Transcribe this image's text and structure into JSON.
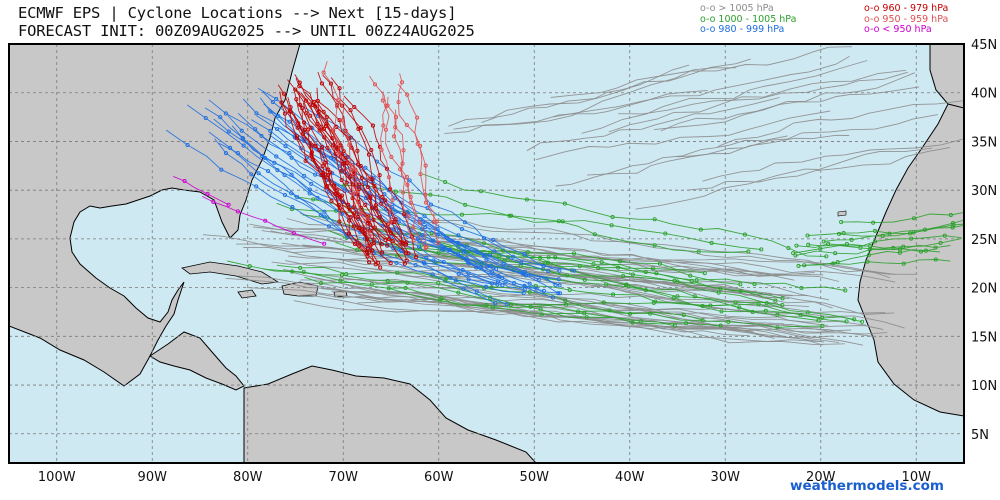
{
  "title": {
    "line1": "ECMWF EPS | Cyclone Locations --> Next [15-days]",
    "line2": "FORECAST INIT: 00Z09AUG2025 --> UNTIL 00Z24AUG2025"
  },
  "legend": [
    {
      "label": "o-o > 1005 hPa",
      "color": "#8c8c8c"
    },
    {
      "label": "o-o 1000 - 1005 hPa",
      "color": "#2ca02c"
    },
    {
      "label": "o-o 980 - 999 hPa",
      "color": "#1f6fe0"
    },
    {
      "label": "o-o 960 - 979 hPa",
      "color": "#c00000"
    },
    {
      "label": "o-o 950 - 959 hPa",
      "color": "#e05050"
    },
    {
      "label": "o-o < 950 hPa",
      "color": "#cc00cc"
    }
  ],
  "axes": {
    "lon_labels": [
      "100W",
      "90W",
      "80W",
      "70W",
      "60W",
      "50W",
      "40W",
      "30W",
      "20W",
      "10W"
    ],
    "lat_labels": [
      "45N",
      "40N",
      "35N",
      "30N",
      "25N",
      "20N",
      "15N",
      "10N",
      "5N"
    ]
  },
  "map": {
    "extent": {
      "lon_min": -105,
      "lon_max": -5,
      "lat_min": 2,
      "lat_max": 45
    },
    "ocean_color": "#cfe9f2",
    "land_color": "#c8c8c8"
  },
  "credit": "weathermodels.com"
}
